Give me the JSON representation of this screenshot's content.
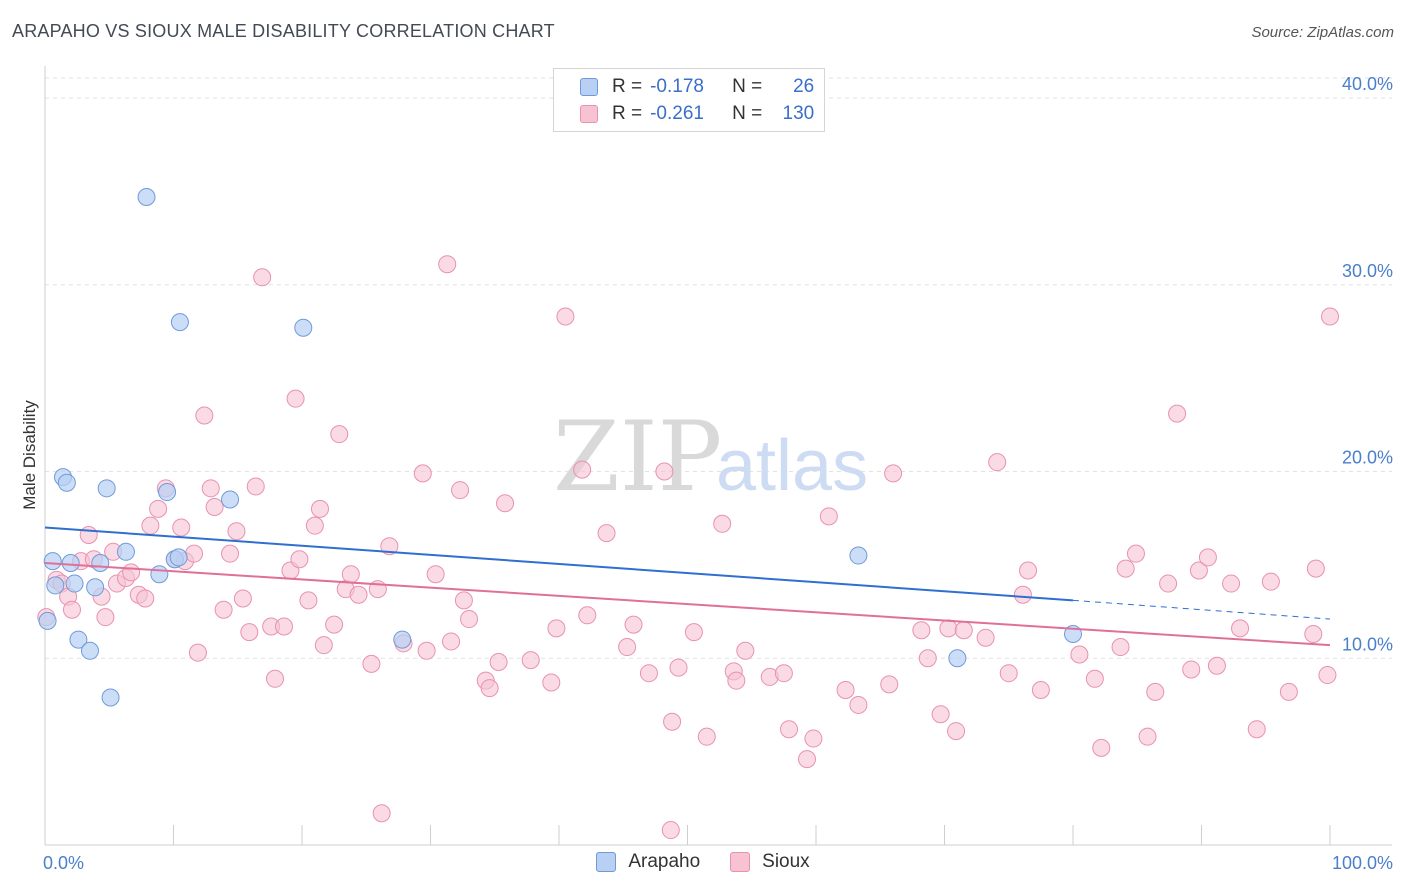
{
  "title": "ARAPAHO VS SIOUX MALE DISABILITY CORRELATION CHART",
  "source": "Source: ZipAtlas.com",
  "watermark": {
    "part1": "ZIP",
    "part2": "atlas"
  },
  "legend": {
    "rows": [
      {
        "series": "Arapaho",
        "r_label": "R =",
        "r_value": "-0.178",
        "n_label": "N =",
        "n_value": "26"
      },
      {
        "series": "Sioux",
        "r_label": "R =",
        "r_value": "-0.261",
        "n_label": "N =",
        "n_value": "130"
      }
    ]
  },
  "colors": {
    "arapaho_fill": "#b7d0f3",
    "arapaho_stroke": "#6f9bd8",
    "arapaho_line": "#2f6fcf",
    "sioux_fill": "#f7c3d3",
    "sioux_stroke": "#e892ae",
    "sioux_line": "#e0709a",
    "tick": "#4a7fcb"
  },
  "chart_data": {
    "type": "scatter",
    "title": "ARAPAHO VS SIOUX MALE DISABILITY CORRELATION CHART",
    "xlabel": "",
    "ylabel": "Male Disability",
    "xlim": [
      0,
      100
    ],
    "ylim": [
      0,
      41.5
    ],
    "x_tick_labels": [
      "0.0%",
      "100.0%"
    ],
    "y_ticks": [
      10,
      20,
      30,
      40
    ],
    "y_tick_labels": [
      "10.0%",
      "20.0%",
      "30.0%",
      "40.0%"
    ],
    "grid": true,
    "series": [
      {
        "name": "Arapaho",
        "points": [
          [
            0.2,
            12.0
          ],
          [
            0.6,
            15.2
          ],
          [
            0.8,
            13.9
          ],
          [
            1.4,
            19.7
          ],
          [
            1.7,
            19.4
          ],
          [
            2.0,
            15.1
          ],
          [
            2.3,
            14.0
          ],
          [
            2.6,
            11.0
          ],
          [
            3.5,
            10.4
          ],
          [
            3.9,
            13.8
          ],
          [
            4.3,
            15.1
          ],
          [
            4.8,
            19.1
          ],
          [
            5.1,
            7.9
          ],
          [
            6.3,
            15.7
          ],
          [
            7.9,
            34.7
          ],
          [
            8.9,
            14.5
          ],
          [
            9.5,
            18.9
          ],
          [
            10.1,
            15.3
          ],
          [
            10.4,
            15.4
          ],
          [
            10.5,
            28.0
          ],
          [
            14.4,
            18.5
          ],
          [
            20.1,
            27.7
          ],
          [
            27.8,
            11.0
          ],
          [
            63.3,
            15.5
          ],
          [
            71.0,
            10.0
          ],
          [
            80.0,
            11.3
          ]
        ],
        "trend": {
          "x0": 0,
          "y0": 17.0,
          "x1": 80,
          "y1": 13.1,
          "dash_to_x": 100,
          "dash_to_y": 12.1
        }
      },
      {
        "name": "Sioux",
        "points": [
          [
            0.1,
            12.2
          ],
          [
            0.9,
            14.2
          ],
          [
            1.3,
            14.0
          ],
          [
            1.8,
            13.3
          ],
          [
            2.1,
            12.6
          ],
          [
            2.8,
            15.2
          ],
          [
            3.4,
            16.6
          ],
          [
            3.8,
            15.3
          ],
          [
            4.4,
            13.3
          ],
          [
            4.7,
            12.2
          ],
          [
            5.3,
            15.7
          ],
          [
            5.6,
            14.0
          ],
          [
            6.3,
            14.3
          ],
          [
            6.7,
            14.6
          ],
          [
            7.3,
            13.4
          ],
          [
            7.8,
            13.2
          ],
          [
            8.2,
            17.1
          ],
          [
            8.8,
            18.0
          ],
          [
            9.4,
            19.1
          ],
          [
            10.1,
            15.3
          ],
          [
            10.6,
            17.0
          ],
          [
            10.9,
            15.2
          ],
          [
            11.6,
            15.6
          ],
          [
            11.9,
            10.3
          ],
          [
            12.4,
            23.0
          ],
          [
            12.9,
            19.1
          ],
          [
            13.2,
            18.1
          ],
          [
            13.9,
            12.6
          ],
          [
            14.4,
            15.6
          ],
          [
            14.9,
            16.8
          ],
          [
            15.4,
            13.2
          ],
          [
            15.9,
            11.4
          ],
          [
            16.4,
            19.2
          ],
          [
            16.9,
            30.4
          ],
          [
            17.6,
            11.7
          ],
          [
            17.9,
            8.9
          ],
          [
            18.6,
            11.7
          ],
          [
            19.1,
            14.7
          ],
          [
            19.5,
            23.9
          ],
          [
            19.8,
            15.3
          ],
          [
            20.5,
            13.1
          ],
          [
            21.0,
            17.1
          ],
          [
            21.4,
            18.0
          ],
          [
            21.7,
            10.7
          ],
          [
            22.5,
            11.8
          ],
          [
            22.9,
            22.0
          ],
          [
            23.4,
            13.7
          ],
          [
            23.8,
            14.5
          ],
          [
            24.4,
            13.4
          ],
          [
            25.4,
            9.7
          ],
          [
            25.9,
            13.7
          ],
          [
            26.8,
            16.0
          ],
          [
            27.9,
            10.8
          ],
          [
            29.4,
            19.9
          ],
          [
            29.7,
            10.4
          ],
          [
            30.4,
            14.5
          ],
          [
            31.3,
            31.1
          ],
          [
            31.6,
            10.9
          ],
          [
            32.3,
            19.0
          ],
          [
            32.6,
            13.1
          ],
          [
            33.0,
            12.1
          ],
          [
            34.3,
            8.8
          ],
          [
            34.6,
            8.4
          ],
          [
            35.3,
            9.8
          ],
          [
            35.8,
            18.3
          ],
          [
            37.8,
            9.9
          ],
          [
            39.4,
            8.7
          ],
          [
            39.8,
            11.6
          ],
          [
            40.5,
            28.3
          ],
          [
            41.8,
            20.1
          ],
          [
            42.2,
            12.3
          ],
          [
            43.7,
            16.7
          ],
          [
            45.3,
            10.6
          ],
          [
            45.8,
            11.8
          ],
          [
            47.0,
            9.2
          ],
          [
            48.2,
            20.0
          ],
          [
            48.8,
            6.6
          ],
          [
            49.3,
            9.5
          ],
          [
            50.5,
            11.4
          ],
          [
            51.5,
            5.8
          ],
          [
            52.7,
            17.2
          ],
          [
            53.6,
            9.3
          ],
          [
            53.8,
            8.8
          ],
          [
            54.5,
            10.4
          ],
          [
            56.4,
            9.0
          ],
          [
            57.5,
            9.2
          ],
          [
            57.9,
            6.2
          ],
          [
            59.3,
            4.6
          ],
          [
            59.8,
            5.7
          ],
          [
            61.0,
            17.6
          ],
          [
            62.3,
            8.3
          ],
          [
            63.3,
            7.5
          ],
          [
            66.0,
            19.9
          ],
          [
            65.7,
            8.6
          ],
          [
            68.2,
            11.5
          ],
          [
            68.7,
            10.0
          ],
          [
            69.7,
            7.0
          ],
          [
            70.3,
            11.6
          ],
          [
            70.9,
            6.1
          ],
          [
            71.5,
            11.5
          ],
          [
            73.2,
            11.1
          ],
          [
            74.1,
            20.5
          ],
          [
            75.0,
            9.2
          ],
          [
            76.1,
            13.4
          ],
          [
            76.5,
            14.7
          ],
          [
            77.5,
            8.3
          ],
          [
            80.5,
            10.2
          ],
          [
            81.7,
            8.9
          ],
          [
            82.2,
            5.2
          ],
          [
            83.7,
            10.6
          ],
          [
            84.1,
            14.8
          ],
          [
            84.9,
            15.6
          ],
          [
            85.8,
            5.8
          ],
          [
            86.4,
            8.2
          ],
          [
            87.4,
            14.0
          ],
          [
            88.1,
            23.1
          ],
          [
            89.2,
            9.4
          ],
          [
            89.8,
            14.7
          ],
          [
            90.5,
            15.4
          ],
          [
            91.2,
            9.6
          ],
          [
            92.3,
            14.0
          ],
          [
            93.0,
            11.6
          ],
          [
            94.3,
            6.2
          ],
          [
            95.4,
            14.1
          ],
          [
            96.8,
            8.2
          ],
          [
            98.7,
            11.3
          ],
          [
            98.9,
            14.8
          ],
          [
            99.8,
            9.1
          ],
          [
            100.0,
            28.3
          ],
          [
            48.7,
            0.8
          ],
          [
            26.2,
            1.7
          ]
        ],
        "trend": {
          "x0": 0,
          "y0": 15.1,
          "x1": 100,
          "y1": 10.7
        }
      }
    ]
  }
}
